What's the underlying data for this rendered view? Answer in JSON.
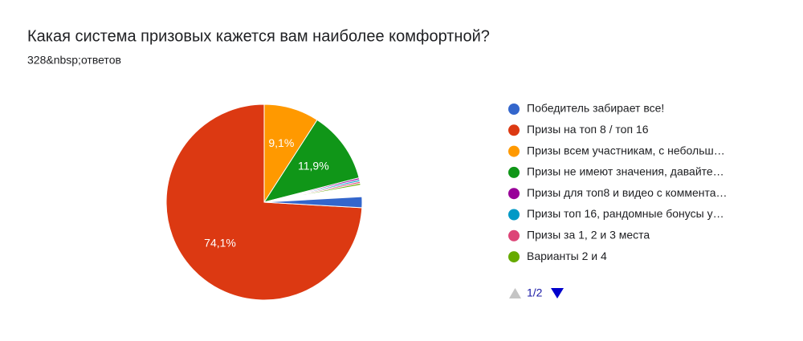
{
  "chart_data": {
    "type": "pie",
    "title": "Какая система призовых кажется вам наиболее комфортной?",
    "subtitle": "328&nbsp;ответов",
    "categories": [
      "Победитель забирает все!",
      "Призы на топ 8 / топ 16",
      "Призы всем участникам, с небольш…",
      "Призы не имеют значения, давайте…",
      "Призы для топ8 и видео с коммента…",
      "Призы топ 16, рандомные бонусы у…",
      "Призы за 1, 2 и 3 места",
      "Варианты 2 и 4"
    ],
    "values": [
      1.8,
      74.1,
      9.1,
      11.9,
      0.3,
      0.3,
      0.3,
      0.3
    ],
    "value_labels": [
      null,
      "74,1%",
      "9,1%",
      "11,9%",
      null,
      null,
      null,
      null
    ],
    "colors": [
      "#3366cc",
      "#dc3912",
      "#ff9900",
      "#109618",
      "#990099",
      "#0099c6",
      "#dd4477",
      "#66aa00"
    ],
    "legend_position": "right",
    "legend_page": "1/2"
  }
}
